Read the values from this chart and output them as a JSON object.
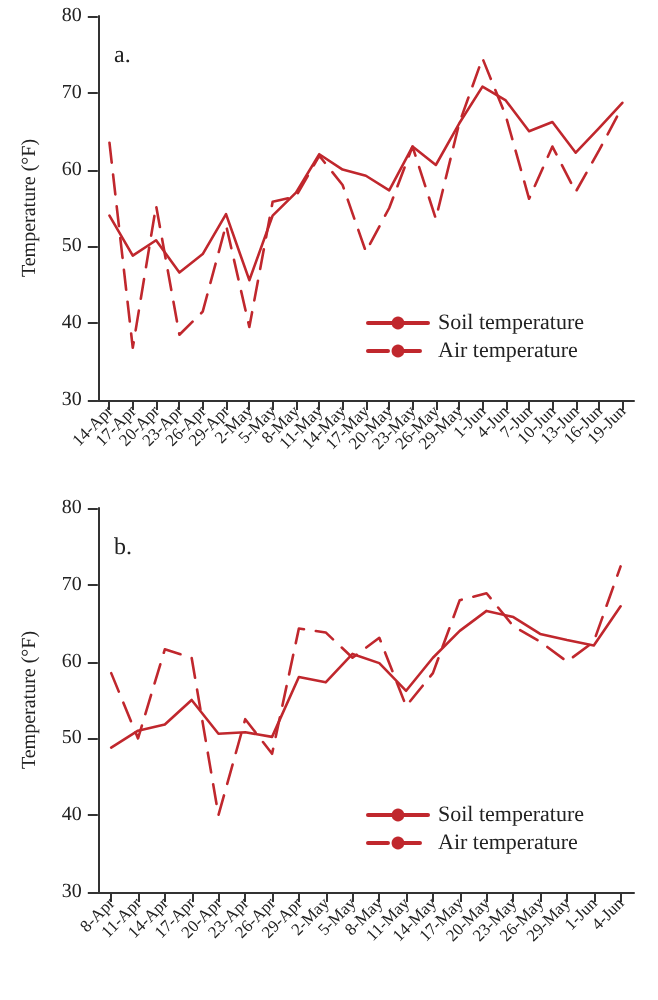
{
  "chart_data": [
    {
      "type": "line",
      "title": "a.",
      "ylabel": "Temperature (°F)",
      "categories": [
        "14-Apr",
        "17-Apr",
        "20-Apr",
        "23-Apr",
        "26-Apr",
        "29-Apr",
        "2-May",
        "5-May",
        "8-May",
        "11-May",
        "14-May",
        "17-May",
        "20-May",
        "23-May",
        "26-May",
        "29-May",
        "1-Jun",
        "4-Jun",
        "7-Jun",
        "10-Jun",
        "13-Jun",
        "16-Jun",
        "19-Jun"
      ],
      "ylim": [
        30,
        80
      ],
      "yticks": [
        30,
        40,
        50,
        60,
        70,
        80
      ],
      "grid": false,
      "legend": "bottom right",
      "marker": "none",
      "series": [
        {
          "name": "Soil temperature",
          "color": "#c0272d",
          "line_style": "solid",
          "values": [
            54,
            48.8,
            50.8,
            46.6,
            49,
            54.2,
            45.6,
            54,
            57,
            62,
            60,
            59.2,
            57.3,
            63,
            60.6,
            66,
            70.8,
            69,
            65,
            66.2,
            62.2,
            65.4,
            68.7
          ]
        },
        {
          "name": "Air temperature",
          "color": "#c0272d",
          "line_style": "dashed",
          "values": [
            63.5,
            36.8,
            55.3,
            38.5,
            41.5,
            52.8,
            39.5,
            55.8,
            56.5,
            61.8,
            58,
            49.3,
            55,
            63,
            53.6,
            66,
            74.5,
            67,
            56.2,
            63,
            57.1,
            62.5,
            68.2
          ]
        }
      ]
    },
    {
      "type": "line",
      "title": "b.",
      "ylabel": "Temperature (°F)",
      "categories": [
        "8-Apr",
        "11-Apr",
        "14-Apr",
        "17-Apr",
        "20-Apr",
        "23-Apr",
        "26-Apr",
        "29-Apr",
        "2-May",
        "5-May",
        "8-May",
        "11-May",
        "14-May",
        "17-May",
        "20-May",
        "23-May",
        "26-May",
        "29-May",
        "1-Jun",
        "4-Jun"
      ],
      "ylim": [
        30,
        80
      ],
      "yticks": [
        30,
        40,
        50,
        60,
        70,
        80
      ],
      "grid": false,
      "legend": "bottom right",
      "marker": "none",
      "series": [
        {
          "name": "Soil temperature",
          "color": "#c0272d",
          "line_style": "solid",
          "values": [
            48.8,
            51,
            51.8,
            55,
            50.6,
            50.8,
            50.2,
            58,
            57.3,
            61,
            59.8,
            56.2,
            60.5,
            64,
            66.6,
            65.8,
            63.6,
            62.8,
            62.1,
            67.2
          ]
        },
        {
          "name": "Air temperature",
          "color": "#c0272d",
          "line_style": "dashed",
          "values": [
            58.5,
            50,
            61.6,
            60.5,
            40,
            52.5,
            48,
            64.3,
            63.8,
            60.5,
            63.1,
            54.2,
            58.5,
            68,
            68.9,
            64.6,
            62.6,
            60,
            62.6,
            72.4
          ]
        }
      ]
    }
  ]
}
